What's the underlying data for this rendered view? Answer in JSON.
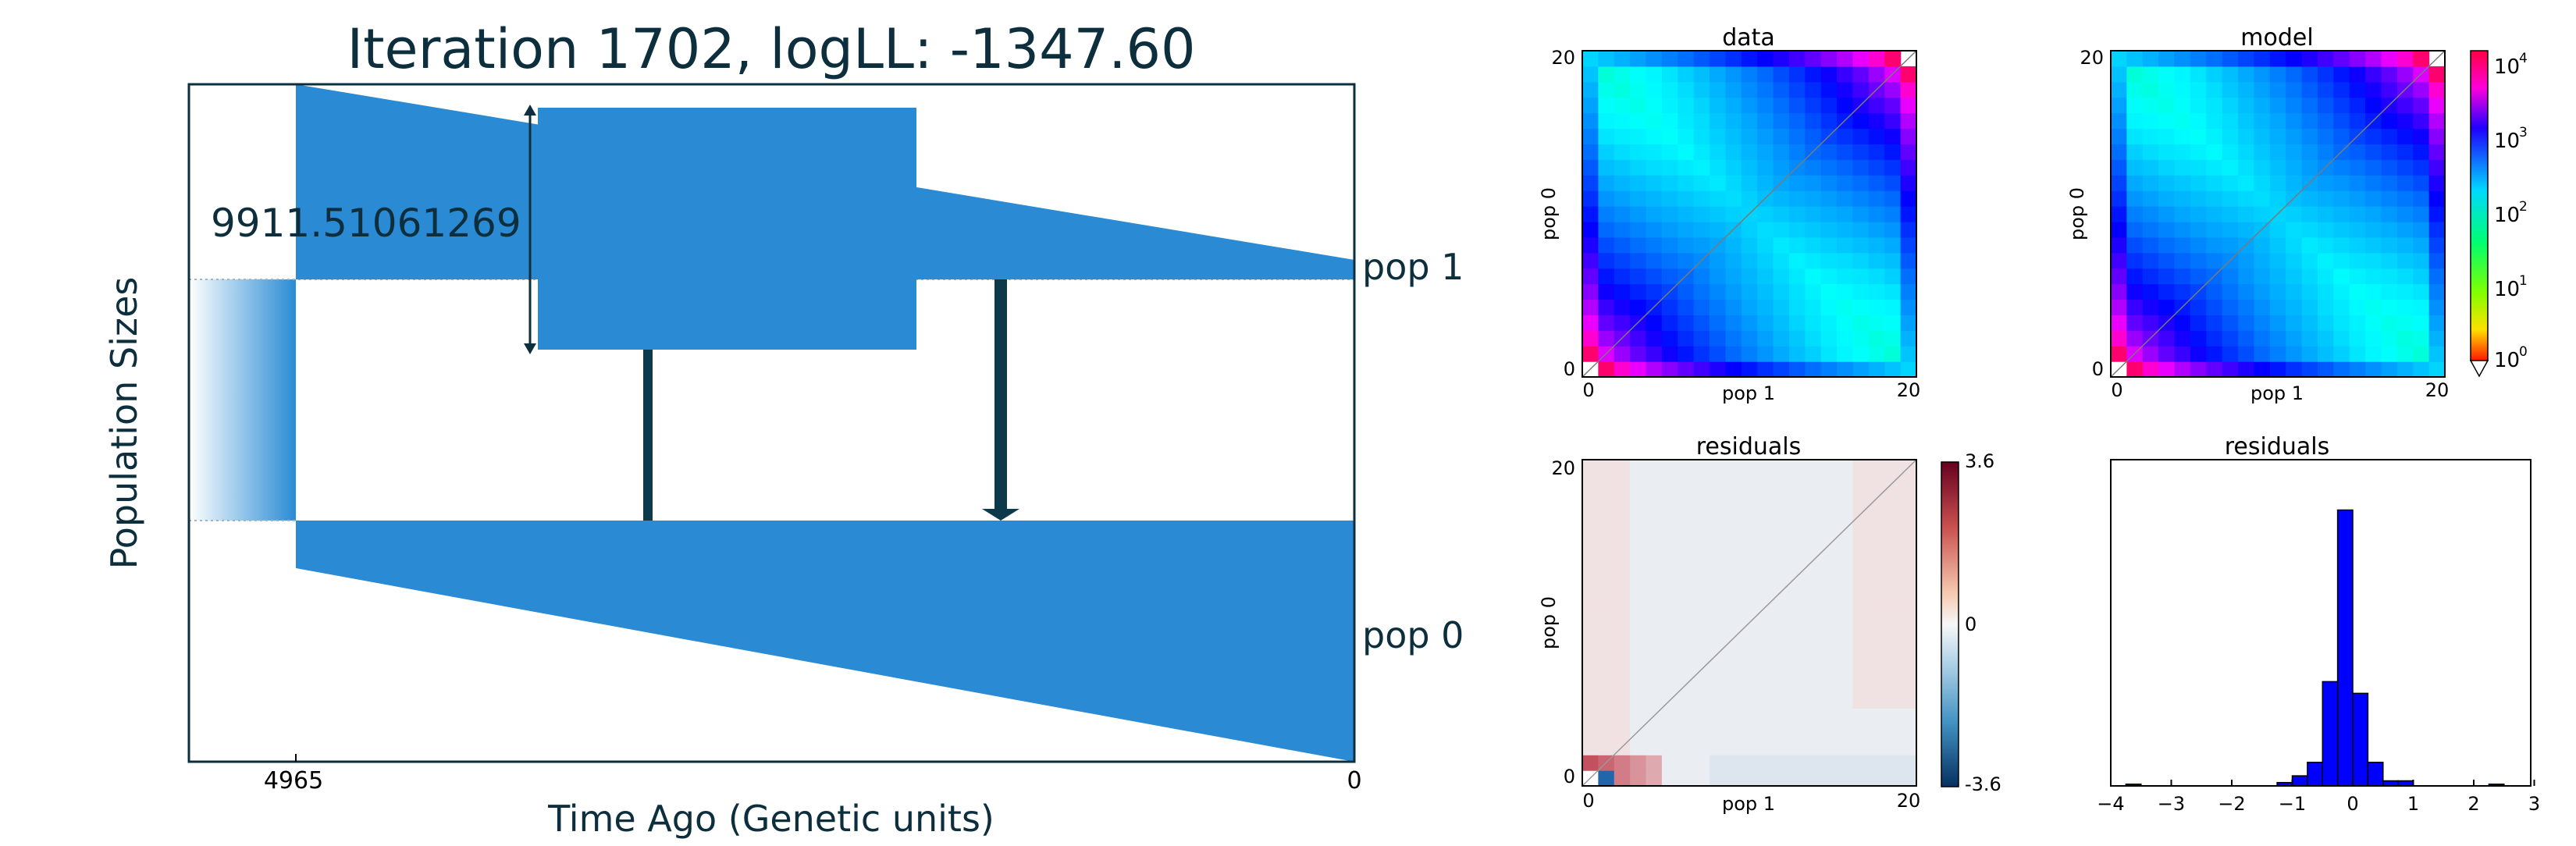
{
  "colors": {
    "demography_fill": "#2a8bd4",
    "demography_text": "#0d2e3d",
    "frame": "#0d2e3d",
    "migration_arrow": "#0d3a4a",
    "histogram_bar": "#0000ff",
    "axis": "#000000"
  },
  "chart_data": [
    {
      "type": "demography",
      "title": "Iteration 1702, logLL:   -1347.60",
      "xlabel": "Time Ago (Genetic units)",
      "ylabel": "Population Sizes",
      "xticks": [
        "4965",
        "0"
      ],
      "scale_bar_label": "9911.51061269",
      "populations": [
        {
          "name": "pop 1"
        },
        {
          "name": "pop 0"
        }
      ],
      "split_time": 4965,
      "migrations": [
        {
          "from": "pop 1",
          "to": "pop 0",
          "strength": "weak"
        },
        {
          "from": "pop 1",
          "to": "pop 0",
          "strength": "strong"
        }
      ]
    },
    {
      "type": "heatmap",
      "title": "data",
      "xlabel": "pop 1",
      "ylabel": "pop 0",
      "xticks": [
        "0",
        "20"
      ],
      "yticks": [
        "0",
        "20"
      ],
      "grid_size": 21,
      "colormap": "hsv",
      "scale": "log"
    },
    {
      "type": "heatmap",
      "title": "model",
      "xlabel": "pop 1",
      "ylabel": "pop 0",
      "xticks": [
        "0",
        "20"
      ],
      "yticks": [
        "0",
        "20"
      ],
      "grid_size": 21,
      "colormap": "hsv",
      "scale": "log",
      "colorbar_ticks": [
        "10",
        "10",
        "10",
        "10",
        "10"
      ],
      "colorbar_exponents": [
        "4",
        "3",
        "2",
        "1",
        "0"
      ],
      "colorbar_values": [
        10000,
        1000,
        100,
        10,
        1
      ]
    },
    {
      "type": "heatmap",
      "title": "residuals",
      "xlabel": "pop 1",
      "ylabel": "pop 0",
      "xticks": [
        "0",
        "20"
      ],
      "yticks": [
        "0",
        "20"
      ],
      "grid_size": 21,
      "colormap": "RdBu_r",
      "colorbar_ticks": [
        "3.6",
        "0",
        "-3.6"
      ],
      "vmin": -3.6,
      "vmax": 3.6
    },
    {
      "type": "bar",
      "title": "residuals",
      "xticks": [
        "−4",
        "−3",
        "−2",
        "−1",
        "0",
        "1",
        "2",
        "3"
      ],
      "xlim": [
        -4,
        3
      ],
      "bin_width": 0.25,
      "bins": [
        {
          "x": -3.75,
          "count": 1
        },
        {
          "x": -1.25,
          "count": 2
        },
        {
          "x": -1.0,
          "count": 6
        },
        {
          "x": -0.75,
          "count": 14
        },
        {
          "x": -0.5,
          "count": 62
        },
        {
          "x": -0.25,
          "count": 164
        },
        {
          "x": 0.0,
          "count": 55
        },
        {
          "x": 0.25,
          "count": 14
        },
        {
          "x": 0.5,
          "count": 3
        },
        {
          "x": 0.75,
          "count": 3
        },
        {
          "x": 2.25,
          "count": 1
        }
      ],
      "ylim": [
        0,
        180
      ]
    }
  ]
}
